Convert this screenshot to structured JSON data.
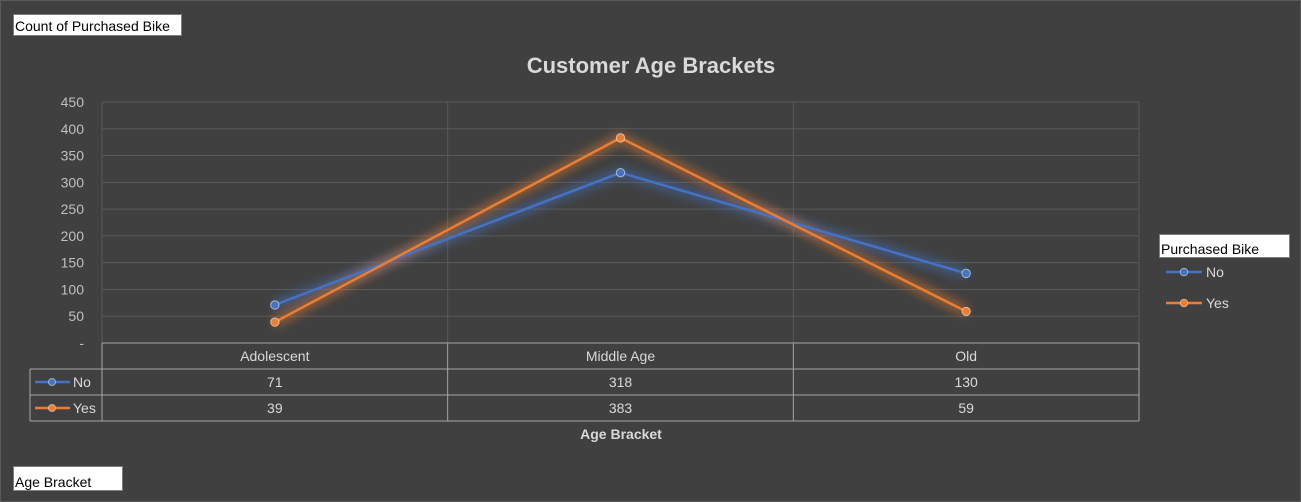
{
  "field_buttons": {
    "values": "Count of Purchased Bike",
    "axis": "Age Bracket",
    "legend": "Purchased Bike"
  },
  "chart_data": {
    "type": "line",
    "title": "Customer Age Brackets",
    "xlabel": "Age Bracket",
    "ylabel": "",
    "categories": [
      "Adolescent",
      "Middle Age",
      "Old"
    ],
    "ylim": [
      0,
      450
    ],
    "yticks": [
      "-",
      "50",
      "100",
      "150",
      "200",
      "250",
      "300",
      "350",
      "400",
      "450"
    ],
    "grid": true,
    "legend_position": "right",
    "data_table": true,
    "series": [
      {
        "name": "No",
        "values": [
          71,
          318,
          130
        ],
        "color": "#4472c4"
      },
      {
        "name": "Yes",
        "values": [
          39,
          383,
          59
        ],
        "color": "#ed7d31"
      }
    ]
  }
}
